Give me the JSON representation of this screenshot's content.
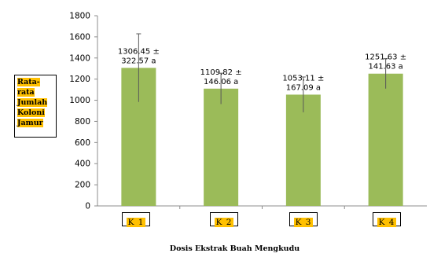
{
  "chart_data": {
    "type": "bar",
    "categories": [
      "K 1",
      "K 2",
      "K 3",
      "K 4"
    ],
    "values": [
      1306.45,
      1109.82,
      1053.11,
      1251.63
    ],
    "errors": [
      322.57,
      146.06,
      167.09,
      141.63
    ],
    "data_labels": [
      [
        "1306.45 ±",
        "322.57 a"
      ],
      [
        "1109.82 ±",
        "146.06 a"
      ],
      [
        "1053.11 ±",
        "167.09 a"
      ],
      [
        "1251.63 ±",
        "141.63 a"
      ]
    ],
    "ylabel_lines": [
      "Rata-",
      "rata",
      "Jumlah",
      "Koloni",
      "Jamur"
    ],
    "xlabel": "Dosis Ekstrak Buah Mengkudu",
    "ylim": [
      0,
      1800
    ],
    "yticks": [
      0,
      200,
      400,
      600,
      800,
      1000,
      1200,
      1400,
      1600,
      1800
    ],
    "grid": false,
    "legend": "none",
    "colors": {
      "bar": "#9bbb59",
      "error_bar": "#595959",
      "axis": "#8c8c8c",
      "label_highlight": "#ffc000"
    }
  }
}
